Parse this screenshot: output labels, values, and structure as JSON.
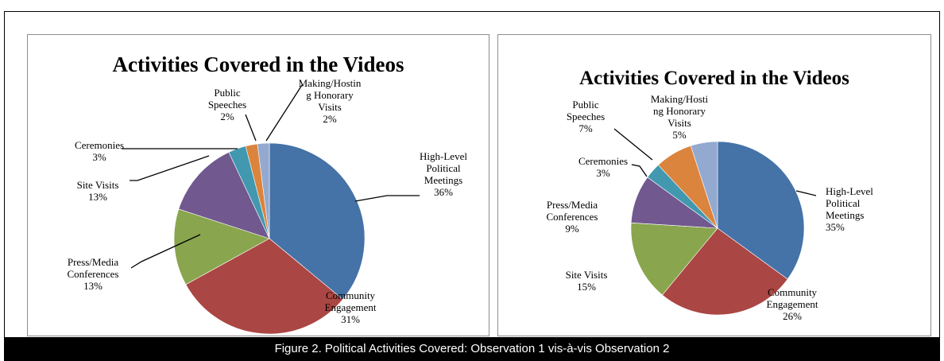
{
  "caption": "Figure 2. Political Activities Covered: Observation 1 vis-à-vis Observation 2",
  "chart_data": [
    {
      "type": "pie",
      "title": "Activities Covered in the Videos",
      "start_angle_deg": 0,
      "direction": "clockwise",
      "slices": [
        {
          "key": "hlpm",
          "label_lines": [
            "High-Level",
            "Political",
            "Meetings"
          ],
          "pct_label": "36%",
          "value": 36,
          "color": "#4572a7"
        },
        {
          "key": "ce",
          "label_lines": [
            "Community",
            "Engagement"
          ],
          "pct_label": "31%",
          "value": 31,
          "color": "#aa4643"
        },
        {
          "key": "pmc",
          "label_lines": [
            "Press/Media",
            "Conferences"
          ],
          "pct_label": "13%",
          "value": 13,
          "color": "#89a54e"
        },
        {
          "key": "sv",
          "label_lines": [
            "Site Visits"
          ],
          "pct_label": "13%",
          "value": 13,
          "color": "#71588f"
        },
        {
          "key": "cer",
          "label_lines": [
            "Ceremonies"
          ],
          "pct_label": "3%",
          "value": 3,
          "color": "#4198af"
        },
        {
          "key": "ps",
          "label_lines": [
            "Public",
            "Speeches"
          ],
          "pct_label": "2%",
          "value": 2,
          "color": "#db843d"
        },
        {
          "key": "mhv",
          "label_lines": [
            "Making/Hostin",
            "g Honorary",
            "Visits"
          ],
          "pct_label": "2%",
          "value": 2,
          "color": "#93a9cf"
        }
      ]
    },
    {
      "type": "pie",
      "title": "Activities Covered in the Videos",
      "start_angle_deg": 0,
      "direction": "clockwise",
      "slices": [
        {
          "key": "hlpm",
          "label_lines": [
            "High-Level",
            "Political",
            "Meetings"
          ],
          "pct_label": "35%",
          "value": 35,
          "color": "#4572a7"
        },
        {
          "key": "ce",
          "label_lines": [
            "Community",
            "Engagement"
          ],
          "pct_label": "26%",
          "value": 26,
          "color": "#aa4643"
        },
        {
          "key": "sv",
          "label_lines": [
            "Site Visits"
          ],
          "pct_label": "15%",
          "value": 15,
          "color": "#89a54e"
        },
        {
          "key": "pmc",
          "label_lines": [
            "Press/Media",
            "Conferences"
          ],
          "pct_label": "9%",
          "value": 9,
          "color": "#71588f"
        },
        {
          "key": "cer",
          "label_lines": [
            "Ceremonies"
          ],
          "pct_label": "3%",
          "value": 3,
          "color": "#4198af"
        },
        {
          "key": "ps",
          "label_lines": [
            "Public",
            "Speeches"
          ],
          "pct_label": "7%",
          "value": 7,
          "color": "#db843d"
        },
        {
          "key": "mhv",
          "label_lines": [
            "Making/Hosti",
            "ng Honorary",
            "Visits"
          ],
          "pct_label": "5%",
          "value": 5,
          "color": "#93a9cf"
        }
      ]
    }
  ]
}
